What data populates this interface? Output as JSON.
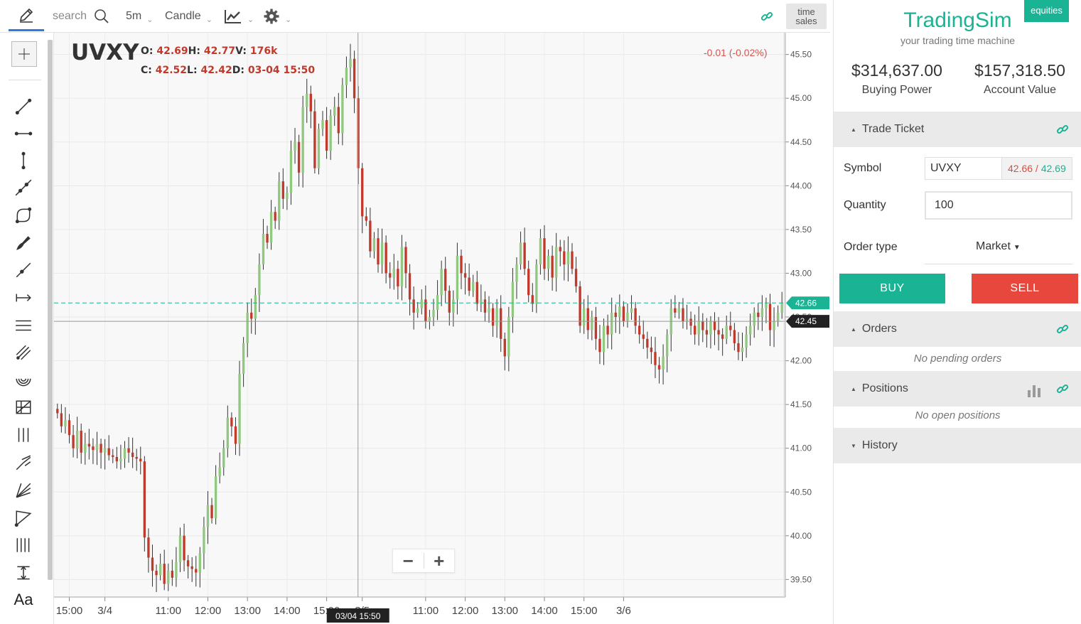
{
  "toolbar": {
    "search_label": "search",
    "interval": "5m",
    "chart_style": "Candle",
    "time_sales_line1": "time",
    "time_sales_line2": "sales"
  },
  "tools": [
    {
      "name": "crosshair-icon"
    },
    {
      "name": "trend-line-icon"
    },
    {
      "name": "horizontal-line-icon"
    },
    {
      "name": "vertical-line-icon"
    },
    {
      "name": "extended-line-icon"
    },
    {
      "name": "curve-icon"
    },
    {
      "name": "brush-icon"
    },
    {
      "name": "ray-icon"
    },
    {
      "name": "measure-icon"
    },
    {
      "name": "parallel-lines-icon"
    },
    {
      "name": "channel-icon"
    },
    {
      "name": "fibonacci-circle-icon"
    },
    {
      "name": "gann-box-icon"
    },
    {
      "name": "vertical-bars-icon"
    },
    {
      "name": "pitchfork-icon"
    },
    {
      "name": "gann-fan-icon"
    },
    {
      "name": "triangle-icon"
    },
    {
      "name": "cycle-lines-icon"
    },
    {
      "name": "price-range-icon"
    }
  ],
  "tool_text_label": "Aa",
  "legend": {
    "symbol": "UVXY",
    "o_label": "O:",
    "o_value": "42.69",
    "h_label": "H:",
    "h_value": "42.77",
    "v_label": "V:",
    "v_value": "176k",
    "c_label": "C:",
    "c_value": "42.52",
    "l_label": "L:",
    "l_value": "42.42",
    "d_label": "D:",
    "d_value": "03-04 15:50",
    "change": "-0.01 (-0.02%)"
  },
  "zoom": {
    "minus": "−",
    "plus": "+"
  },
  "chart_data": {
    "type": "candlestick",
    "ylim": [
      39.3,
      45.7
    ],
    "y_ticks": [
      "45.50",
      "45.00",
      "44.50",
      "44.00",
      "43.50",
      "43.00",
      "42.50",
      "42.00",
      "41.50",
      "41.00",
      "40.50",
      "40.00",
      "39.50"
    ],
    "x_ticks": [
      "15:00",
      "3/4",
      "11:00",
      "12:00",
      "13:00",
      "14:00",
      "15:00",
      "3/5",
      "11:00",
      "12:00",
      "13:00",
      "14:00",
      "15:00",
      "3/6"
    ],
    "current_price": 42.66,
    "current_price_label": "42.66",
    "crosshair_price": 42.45,
    "crosshair_price_label": "42.45",
    "crosshair_time_label": "03/04 15:50",
    "up_color": "#8fc87e",
    "down_color": "#c0392b",
    "closes": [
      41.4,
      41.25,
      41.32,
      41.15,
      41.0,
      41.2,
      40.95,
      41.05,
      41.02,
      40.98,
      41.05,
      40.95,
      41.0,
      40.92,
      40.9,
      40.85,
      40.88,
      41.0,
      40.95,
      40.9,
      40.88,
      40.85,
      39.98,
      39.75,
      39.6,
      39.55,
      39.68,
      39.45,
      39.6,
      39.52,
      39.7,
      40.0,
      39.72,
      39.65,
      39.62,
      39.58,
      39.8,
      40.1,
      40.35,
      40.2,
      40.68,
      40.78,
      41.0,
      41.35,
      41.25,
      41.05,
      41.85,
      42.2,
      42.55,
      42.48,
      42.75,
      43.1,
      43.45,
      43.35,
      43.7,
      43.6,
      44.05,
      43.85,
      43.92,
      44.4,
      44.5,
      44.15,
      44.9,
      45.05,
      44.85,
      44.2,
      44.65,
      44.75,
      44.4,
      44.8,
      44.9,
      44.6,
      45.15,
      45.35,
      45.45,
      45.0,
      44.2,
      43.65,
      43.6,
      43.25,
      43.4,
      43.1,
      43.35,
      43.0,
      42.95,
      43.05,
      42.85,
      43.3,
      43.0,
      42.7,
      42.55,
      42.6,
      42.7,
      42.45,
      42.5,
      42.58,
      42.75,
      43.05,
      42.8,
      42.55,
      42.7,
      43.2,
      43.0,
      42.95,
      42.8,
      42.9,
      42.65,
      42.7,
      42.55,
      42.6,
      42.4,
      42.6,
      42.25,
      42.05,
      42.5,
      42.9,
      43.1,
      43.35,
      43.05,
      42.75,
      42.65,
      43.1,
      43.4,
      43.05,
      43.2,
      42.95,
      43.3,
      43.25,
      43.1,
      43.25,
      43.05,
      42.85,
      42.4,
      42.6,
      42.35,
      42.5,
      42.25,
      42.1,
      42.4,
      42.3,
      42.55,
      42.5,
      42.62,
      42.45,
      42.55,
      42.6,
      42.4,
      42.3,
      42.25,
      42.15,
      42.1,
      41.95,
      41.9,
      42.05,
      42.3,
      42.6,
      42.55,
      42.6,
      42.45,
      42.48,
      42.4,
      42.3,
      42.45,
      42.35,
      42.3,
      42.45,
      42.35,
      42.3,
      42.25,
      42.4,
      42.35,
      42.2,
      42.1,
      42.15,
      42.3,
      42.4,
      42.55,
      42.5,
      42.6,
      42.65,
      42.35,
      42.45,
      42.55,
      42.66
    ]
  },
  "brand": {
    "name": "TradingSim",
    "tagline": "your trading time machine",
    "badge": "equities"
  },
  "account": {
    "buying_power": "$314,637.00",
    "buying_power_label": "Buying Power",
    "account_value": "$157,318.50",
    "account_value_label": "Account Value"
  },
  "trade_ticket": {
    "title": "Trade Ticket",
    "symbol_label": "Symbol",
    "symbol_value": "UVXY",
    "bid": "42.66",
    "ask": "42.69",
    "quantity_label": "Quantity",
    "quantity_value": "100",
    "order_type_label": "Order type",
    "order_type_value": "Market",
    "buy_label": "BUY",
    "sell_label": "SELL"
  },
  "orders": {
    "title": "Orders",
    "empty": "No pending orders"
  },
  "positions": {
    "title": "Positions",
    "empty": "No open positions"
  },
  "history": {
    "title": "History"
  },
  "colors": {
    "accent": "#1ab394",
    "sell": "#e8473d",
    "down": "#c0392b",
    "up": "#8fc87e"
  }
}
